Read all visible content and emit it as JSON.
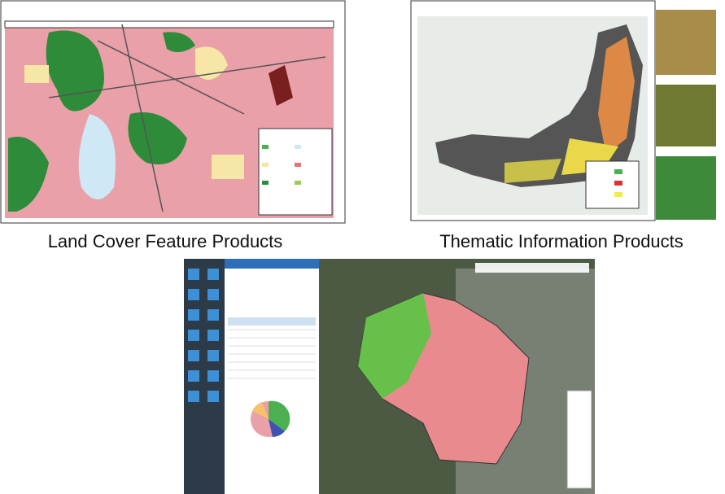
{
  "captions": {
    "land_cover": "Land Cover Feature Products",
    "thematic": "Thematic Information Products"
  }
}
